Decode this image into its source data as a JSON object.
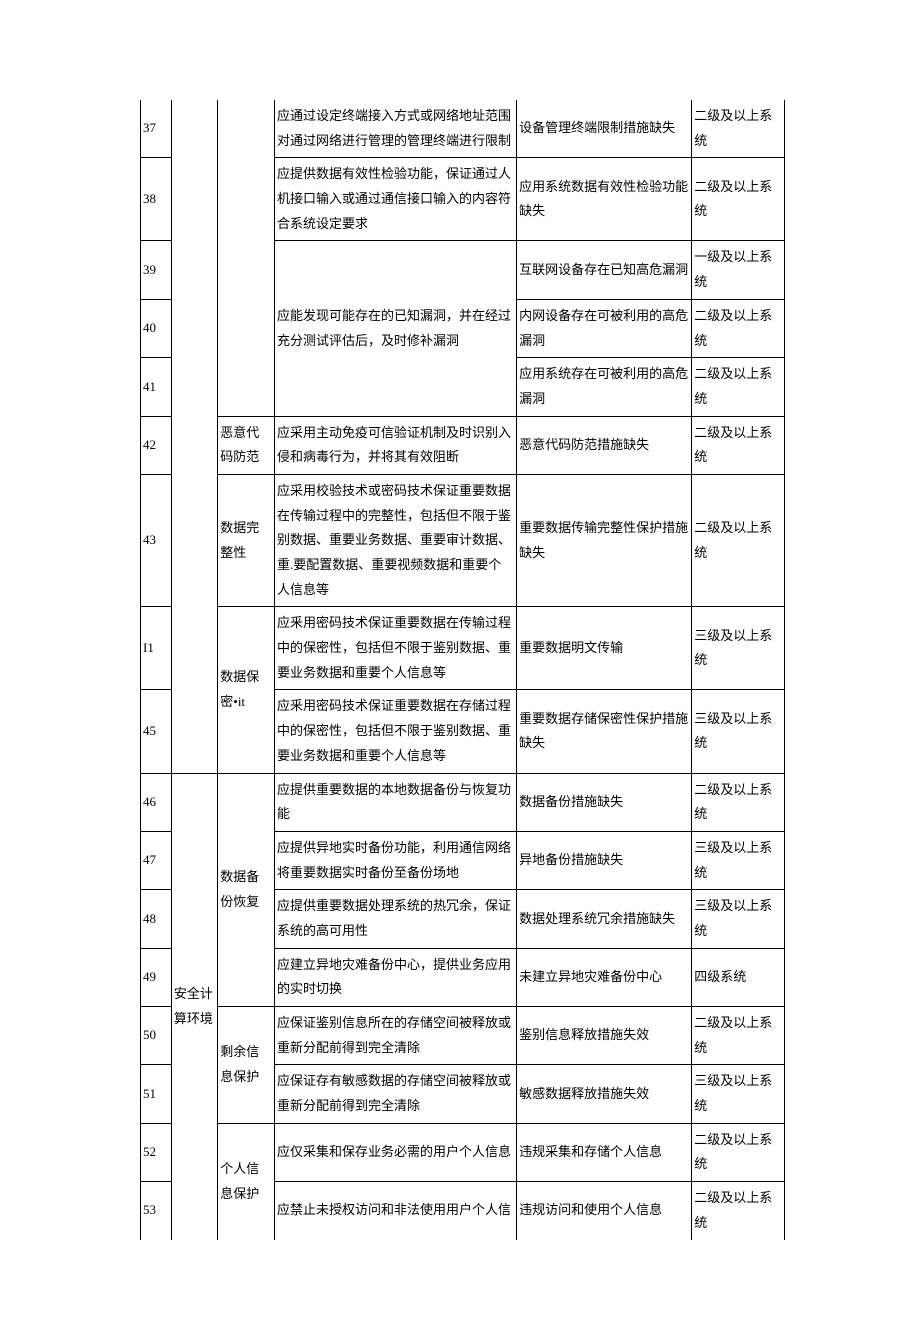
{
  "table": {
    "columns": {
      "idx_width": 30,
      "cat_width": 45,
      "sub_width": 55,
      "req_width": 235,
      "risk_width": 170,
      "level_width": 90
    },
    "border_color": "#000000",
    "text_color": "#000000",
    "background_color": "#ffffff",
    "font_size": 13,
    "line_height": 1.9,
    "categories": {
      "safety_env": "安全计算环境"
    },
    "subcategories": {
      "malware": "恶意代码防范",
      "integrity": "数据完整性",
      "confidential": "数据保密•it",
      "backup": "数据备份恢复",
      "residual": "剩余信息保护",
      "personal": "个人信息保护"
    },
    "rows": [
      {
        "idx": "37",
        "req": "应通过设定终端接入方式或网络地址范围对通过网络进行管理的管理终端进行限制",
        "risk": "设备管理终端限制措施缺失",
        "level": "二级及以上系统"
      },
      {
        "idx": "38",
        "req": "应提供数据有效性检验功能，保证通过人机接口输入或通过通信接口输入的内容符合系统设定要求",
        "risk": "应用系统数据有效性检验功能缺失",
        "level": "二级及以上系统"
      },
      {
        "idx": "39",
        "req_merged_start": "应能发现可能存在的已知漏洞，并在经过充分测试评估后，及时修补漏洞",
        "risk": "互联网设备存在已知高危漏洞",
        "level": "一级及以上系统"
      },
      {
        "idx": "40",
        "risk": "内网设备存在可被利用的高危漏洞",
        "level": "二级及以上系统"
      },
      {
        "idx": "41",
        "risk": "应用系统存在可被利用的高危漏洞",
        "level": "二级及以上系统"
      },
      {
        "idx": "42",
        "sub": "malware",
        "req": "应采用主动免疫可信验证机制及时识别入侵和病毒行为，并将其有效阻断",
        "risk": "恶意代码防范措施缺失",
        "level": "二级及以上系统"
      },
      {
        "idx": "43",
        "sub": "integrity",
        "req": "应采用校验技术或密码技术保证重要数据在传输过程中的完整性，包括但不限于鉴别数据、重要业务数据、重要审计数据、重.要配置数据、重要视频数据和重要个人信息等",
        "risk": "重要数据传输完整性保护措施缺失",
        "level": "二级及以上系统"
      },
      {
        "idx": "I1",
        "sub_merged_start": "confidential",
        "req": "应釆用密码技术保证重要数据在传输过程中的保密性，包括但不限于鉴别数据、重要业务数据和重要个人信息等",
        "risk": "重要数据明文传输",
        "level": "三级及以上系统"
      },
      {
        "idx": "45",
        "req": "应釆用密码技术保证重要数据在存储过程中的保密性，包括但不限于鉴别数据、重要业务数据和重要个人信息等",
        "risk": "重要数据存储保密性保护措施缺失",
        "level": "三级及以上系统"
      },
      {
        "idx": "46",
        "cat": "safety_env",
        "sub_merged_start": "backup",
        "req": "应提供重要数据的本地数据备份与恢复功能",
        "risk": "数据备份措施缺失",
        "level": "二级及以上系统"
      },
      {
        "idx": "47",
        "req": "应提供异地实时备份功能，利用通信网络将重要数据实时备份至备份场地",
        "risk": "异地备份措施缺失",
        "level": "三级及以上系统"
      },
      {
        "idx": "48",
        "req": "应提供重要数据处理系统的热冗余，保证系统的高可用性",
        "risk": "数据处理系统冗余措施缺失",
        "level": "三级及以上系统"
      },
      {
        "idx": "49",
        "req": "应建立异地灾难备份中心，提供业务应用的实时切换",
        "risk": "未建立异地灾难备份中心",
        "level": "四级系统"
      },
      {
        "idx": "50",
        "sub_merged_start": "residual",
        "req": "应保证鉴别信息所在的存储空间被释放或重新分配前得到完全清除",
        "risk": "鉴别信息释放措施失效",
        "level": "二级及以上系统"
      },
      {
        "idx": "51",
        "req": "应保证存有敏感数据的存储空间被释放或重新分配前得到完全清除",
        "risk": "敏感数据释放措施失效",
        "level": "三级及以上系统"
      },
      {
        "idx": "52",
        "sub_merged_start": "personal",
        "req": "应仅采集和保存业务必需的用户个人信息",
        "risk": "违规采集和存储个人信息",
        "level": "二级及以上系统"
      },
      {
        "idx": "53",
        "req": "应禁止未授权访问和非法使用用户个人信",
        "risk": "违规访问和使用个人信息",
        "level": "二级及以上系统"
      }
    ]
  }
}
